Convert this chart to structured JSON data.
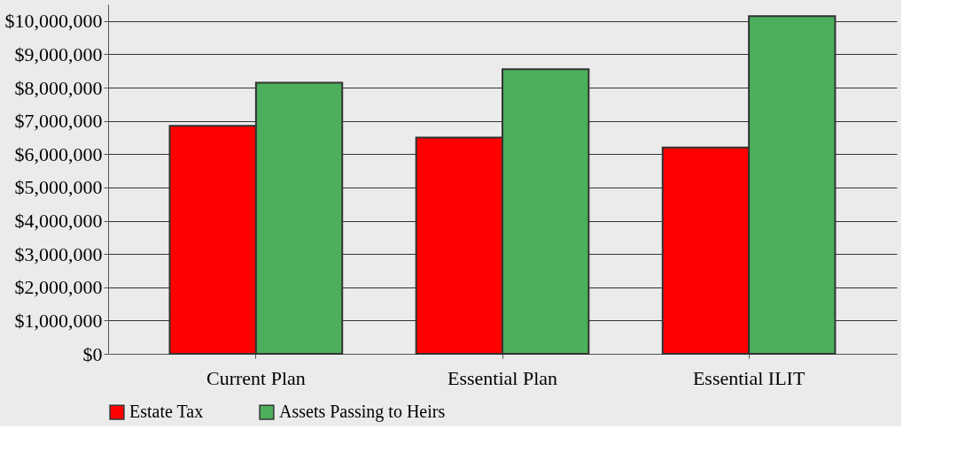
{
  "chart_data": {
    "type": "bar",
    "categories": [
      "Current Plan",
      "Essential Plan",
      "Essential ILIT"
    ],
    "series": [
      {
        "name": "Estate Tax",
        "color": "#ff0000",
        "values": [
          6850000,
          6500000,
          6200000
        ]
      },
      {
        "name": "Assets Passing to Heirs",
        "color": "#4caf5c",
        "values": [
          8150000,
          8550000,
          10150000
        ]
      }
    ],
    "ylim": [
      0,
      10500000
    ],
    "yticks": [
      {
        "value": 0,
        "label": "$0"
      },
      {
        "value": 1000000,
        "label": "$1,000,000"
      },
      {
        "value": 2000000,
        "label": "$2,000,000"
      },
      {
        "value": 3000000,
        "label": "$3,000,000"
      },
      {
        "value": 4000000,
        "label": "$4,000,000"
      },
      {
        "value": 5000000,
        "label": "$5,000,000"
      },
      {
        "value": 6000000,
        "label": "$6,000,000"
      },
      {
        "value": 7000000,
        "label": "$7,000,000"
      },
      {
        "value": 8000000,
        "label": "$8,000,000"
      },
      {
        "value": 9000000,
        "label": "$9,000,000"
      },
      {
        "value": 10000000,
        "label": "$10,000,000"
      }
    ],
    "grid": "y",
    "legend": "bottom"
  }
}
